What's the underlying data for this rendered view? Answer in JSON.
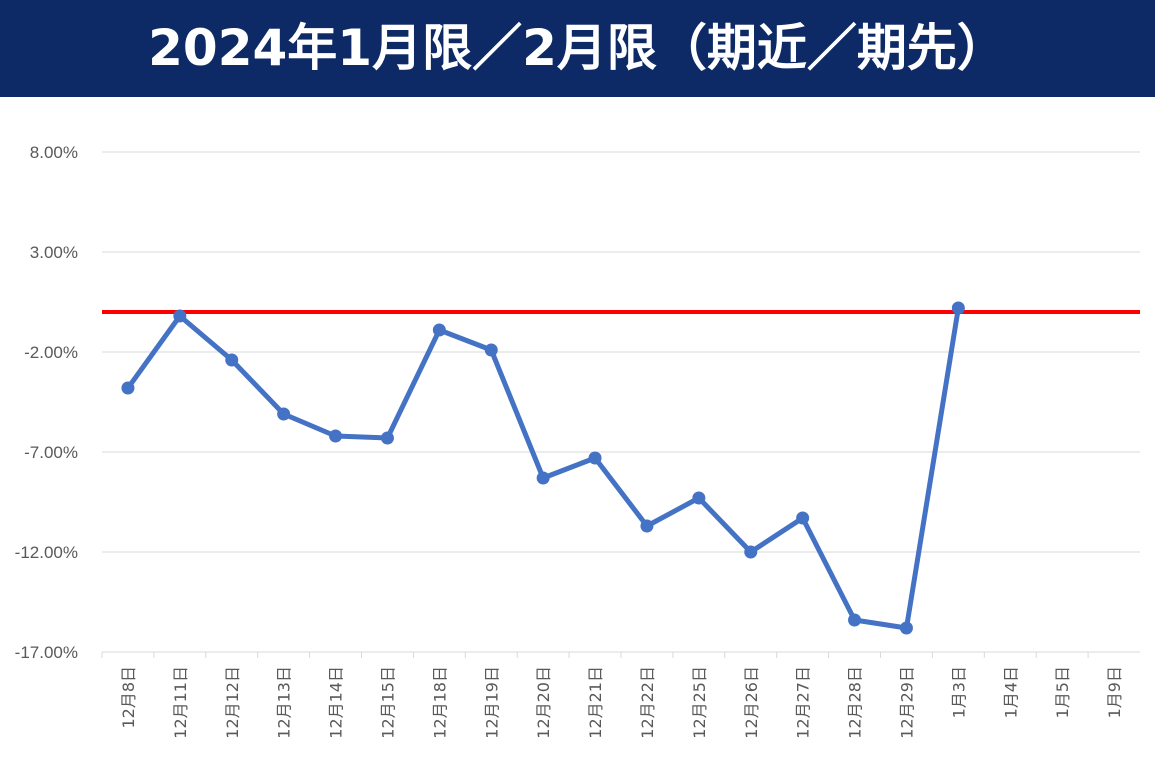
{
  "chart_data": {
    "type": "line",
    "title": "2024年1月限／2月限（期近／期先）",
    "xlabel": "",
    "ylabel": "",
    "categories": [
      "12月8日",
      "12月11日",
      "12月12日",
      "12月13日",
      "12月14日",
      "12月15日",
      "12月18日",
      "12月19日",
      "12月20日",
      "12月21日",
      "12月22日",
      "12月25日",
      "12月26日",
      "12月27日",
      "12月28日",
      "12月29日",
      "1月3日",
      "1月4日",
      "1月5日",
      "1月9日"
    ],
    "series": [
      {
        "values": [
          -3.8,
          -0.2,
          -2.4,
          -5.1,
          -6.2,
          -6.3,
          -0.9,
          -1.9,
          -8.3,
          -7.3,
          -10.7,
          -9.3,
          -12.0,
          -10.3,
          -15.4,
          -15.8,
          0.2,
          null,
          null,
          null
        ]
      }
    ],
    "yticks": [
      -17,
      -12,
      -7,
      -2,
      3,
      8
    ],
    "ytick_labels": [
      "-17.00%",
      "-12.00%",
      "-7.00%",
      "-2.00%",
      "3.00%",
      "8.00%"
    ],
    "ylim": [
      -17,
      8
    ],
    "reference_line": {
      "value": 0,
      "color": "#ff0000"
    },
    "grid": true,
    "colors": {
      "series": "#4472c4",
      "title_bg": "#0d2a66",
      "gridline": "#d9d9d9"
    }
  }
}
